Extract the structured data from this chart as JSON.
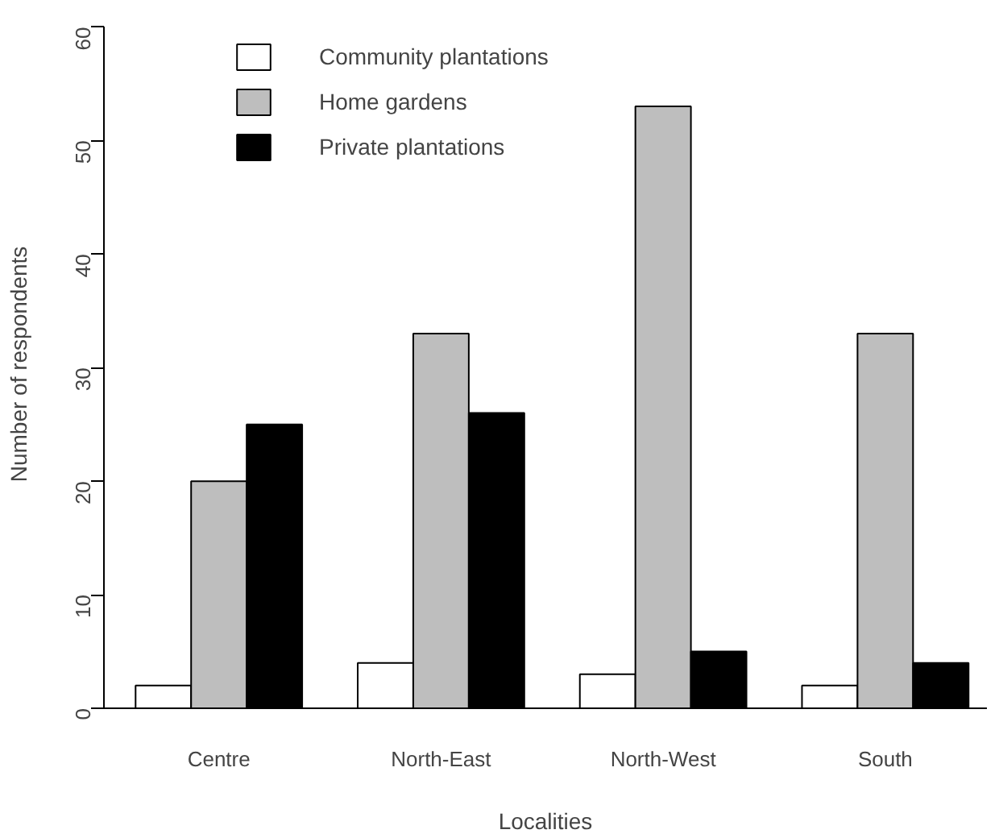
{
  "chart_data": {
    "type": "bar",
    "xlabel": "Localities",
    "ylabel": "Number of respondents",
    "categories": [
      "Centre",
      "North-East",
      "North-West",
      "South"
    ],
    "series": [
      {
        "name": "Community plantations",
        "color": "#ffffff",
        "values": [
          2,
          4,
          3,
          2
        ]
      },
      {
        "name": "Home gardens",
        "color": "#bebebe",
        "values": [
          20,
          33,
          53,
          33
        ]
      },
      {
        "name": "Private plantations",
        "color": "#000000",
        "values": [
          25,
          26,
          5,
          4
        ]
      }
    ],
    "ylim": [
      0,
      60
    ],
    "yticks": [
      0,
      10,
      20,
      30,
      40,
      50,
      60
    ],
    "grid": false,
    "legend": "top left"
  }
}
